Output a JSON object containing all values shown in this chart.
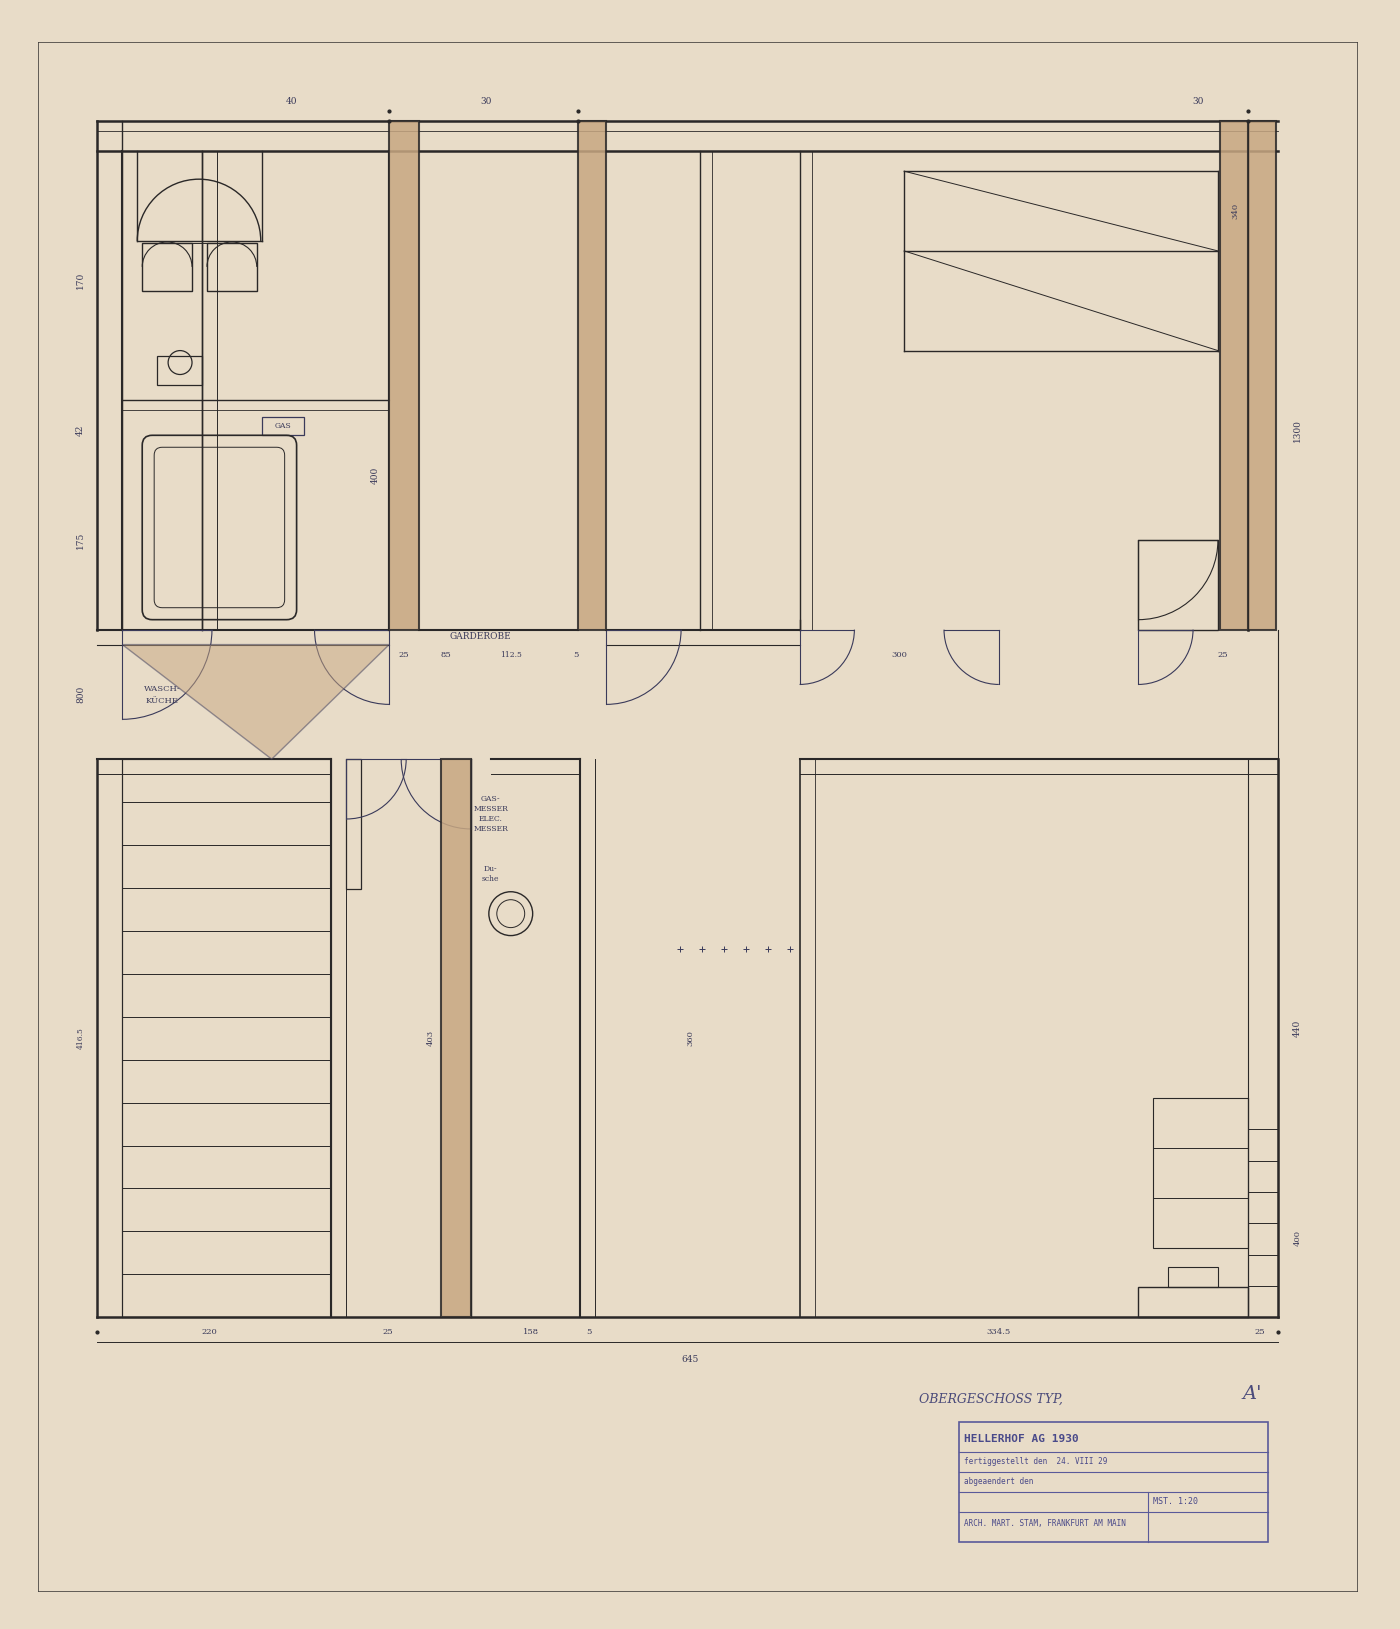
{
  "bg_color": "#e8dcc8",
  "paper_color": "#ede5cf",
  "lc": "#3a3a5a",
  "wc": "#2a2828",
  "hatch_color": "#c8a882",
  "dc": "#3a3a5a",
  "rc": "#c87060",
  "figw": 14.0,
  "figh": 16.29,
  "note_title": "OBERGESCHOSS TYP,",
  "note_hellerhof": "HELLERHOF AG 1930",
  "note_date1": "fertiggestellt den  24. VIII 29",
  "note_abge": "abgeaendert den",
  "note_mst": "MST. 1:20",
  "note_arch": "ARCH. MART. STAM, FRANKFURT AM MAIN",
  "dims_top": [
    "40",
    "30",
    "30"
  ],
  "dims_left_upper": [
    "170",
    "42",
    "175"
  ],
  "dims_mid_h": [
    "25",
    "85",
    "112.5",
    "5",
    "300",
    "25"
  ],
  "dims_right_v": [
    "1300",
    "440"
  ],
  "dims_lower_h": [
    "220",
    "25",
    "158",
    "5",
    "334.5",
    "25"
  ],
  "dims_lower_v": [
    "416.5",
    "403"
  ],
  "dims_other": [
    "800",
    "400",
    "360",
    "645"
  ]
}
